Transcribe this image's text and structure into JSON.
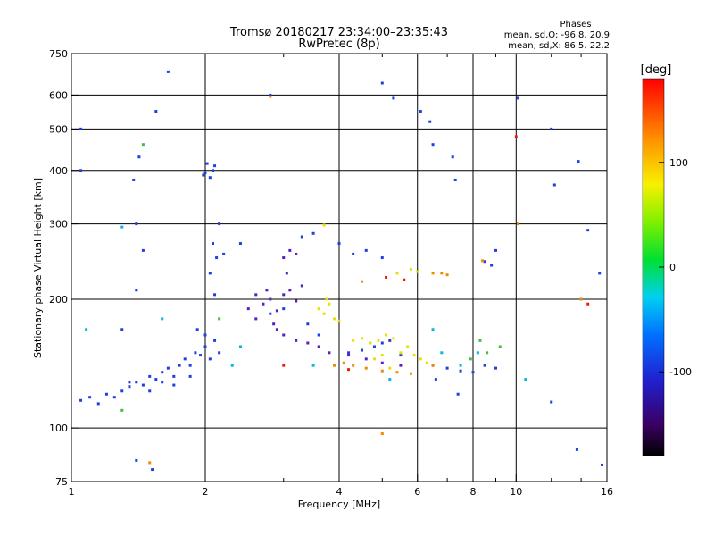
{
  "chart_data": {
    "type": "scatter",
    "title": "Tromsø 20180217 23:34:00–23:35:43",
    "subtitle": "RwPretec (8p)",
    "xlabel": "Frequency [MHz]",
    "ylabel": "Stationary phase Virtual Height [km]",
    "x_scale": "log",
    "y_scale": "log",
    "xlim": [
      1,
      16
    ],
    "ylim": [
      75,
      750
    ],
    "x_ticks": [
      1,
      2,
      4,
      6,
      8,
      10,
      16
    ],
    "y_ticks": [
      75,
      100,
      200,
      300,
      400,
      500,
      600,
      750
    ],
    "grid": true,
    "stats": {
      "heading": "Phases",
      "line_o": "mean, sd,O: -96.8, 20.9",
      "line_x": "mean, sd,X:  86.5, 22.2"
    },
    "colorbar": {
      "label": "[deg]",
      "ticks": [
        100,
        0,
        -100
      ],
      "range": [
        -180,
        180
      ],
      "colormap": "rainbow"
    },
    "colors": {
      "blue": "#1f3fe0",
      "violet": "#5a1fc0",
      "cyan": "#00b8e0",
      "yellow": "#e8e000",
      "orange": "#f08a00",
      "red": "#e82000",
      "green": "#40c040"
    },
    "series": [
      {
        "label_color": "blue",
        "points": [
          [
            1.05,
            116
          ],
          [
            1.1,
            118
          ],
          [
            1.15,
            114
          ],
          [
            1.2,
            120
          ],
          [
            1.25,
            118
          ],
          [
            1.3,
            122
          ],
          [
            1.35,
            125
          ],
          [
            1.4,
            128
          ],
          [
            1.45,
            126
          ],
          [
            1.5,
            132
          ],
          [
            1.55,
            130
          ],
          [
            1.6,
            135
          ],
          [
            1.65,
            138
          ],
          [
            1.7,
            132
          ],
          [
            1.75,
            140
          ],
          [
            1.8,
            145
          ],
          [
            1.85,
            140
          ],
          [
            1.9,
            150
          ],
          [
            1.95,
            148
          ],
          [
            2.0,
            155
          ],
          [
            2.05,
            145
          ],
          [
            2.1,
            160
          ],
          [
            2.15,
            150
          ],
          [
            1.92,
            170
          ],
          [
            2.0,
            165
          ],
          [
            1.35,
            128
          ],
          [
            1.5,
            122
          ],
          [
            1.6,
            128
          ],
          [
            1.7,
            126
          ],
          [
            1.85,
            132
          ],
          [
            2.05,
            385
          ],
          [
            2.08,
            400
          ],
          [
            2.1,
            410
          ],
          [
            2.0,
            395
          ],
          [
            1.98,
            390
          ],
          [
            2.02,
            415
          ],
          [
            2.1,
            205
          ],
          [
            2.05,
            230
          ],
          [
            2.12,
            250
          ],
          [
            2.08,
            270
          ],
          [
            2.15,
            300
          ],
          [
            4.2,
            150
          ],
          [
            4.5,
            152
          ],
          [
            4.8,
            155
          ],
          [
            5.0,
            158
          ],
          [
            5.2,
            160
          ],
          [
            5.5,
            148
          ],
          [
            6.5,
            140
          ],
          [
            7.0,
            138
          ],
          [
            7.5,
            136
          ],
          [
            8.0,
            135
          ],
          [
            8.5,
            140
          ],
          [
            9.0,
            138
          ],
          [
            8.8,
            240
          ],
          [
            9.0,
            260
          ],
          [
            8.5,
            245
          ],
          [
            4.0,
            270
          ],
          [
            4.3,
            255
          ],
          [
            4.6,
            260
          ],
          [
            5.0,
            250
          ],
          [
            2.8,
            185
          ],
          [
            3.0,
            190
          ],
          [
            3.4,
            175
          ],
          [
            3.6,
            165
          ]
        ]
      },
      {
        "label_color": "violet",
        "points": [
          [
            2.5,
            190
          ],
          [
            2.6,
            180
          ],
          [
            2.7,
            195
          ],
          [
            2.8,
            200
          ],
          [
            2.9,
            188
          ],
          [
            3.0,
            205
          ],
          [
            3.1,
            210
          ],
          [
            3.2,
            198
          ],
          [
            3.3,
            215
          ],
          [
            3.0,
            250
          ],
          [
            3.1,
            260
          ],
          [
            3.2,
            255
          ],
          [
            2.9,
            170
          ],
          [
            3.0,
            165
          ],
          [
            3.2,
            160
          ],
          [
            3.4,
            158
          ],
          [
            3.6,
            155
          ],
          [
            3.8,
            150
          ],
          [
            4.2,
            148
          ],
          [
            4.6,
            145
          ],
          [
            5.0,
            142
          ],
          [
            5.5,
            140
          ],
          [
            2.6,
            205
          ],
          [
            2.75,
            210
          ],
          [
            3.05,
            230
          ],
          [
            2.85,
            175
          ]
        ]
      },
      {
        "label_color": "cyan",
        "points": [
          [
            1.3,
            295
          ],
          [
            1.6,
            180
          ],
          [
            2.3,
            140
          ],
          [
            2.4,
            155
          ],
          [
            3.5,
            140
          ],
          [
            5.2,
            130
          ],
          [
            6.5,
            170
          ],
          [
            6.8,
            150
          ],
          [
            7.5,
            140
          ],
          [
            8.2,
            150
          ],
          [
            10.5,
            130
          ],
          [
            1.08,
            170
          ]
        ]
      },
      {
        "label_color": "yellow",
        "points": [
          [
            3.6,
            190
          ],
          [
            3.7,
            185
          ],
          [
            3.8,
            195
          ],
          [
            3.9,
            180
          ],
          [
            4.0,
            178
          ],
          [
            3.75,
            200
          ],
          [
            4.3,
            160
          ],
          [
            4.5,
            162
          ],
          [
            4.7,
            158
          ],
          [
            4.9,
            160
          ],
          [
            5.1,
            165
          ],
          [
            5.3,
            162
          ],
          [
            5.5,
            150
          ],
          [
            5.7,
            155
          ],
          [
            5.9,
            148
          ],
          [
            6.1,
            145
          ],
          [
            6.3,
            142
          ],
          [
            4.8,
            145
          ],
          [
            5.0,
            148
          ],
          [
            5.2,
            138
          ],
          [
            3.7,
            298
          ],
          [
            5.4,
            230
          ],
          [
            5.8,
            235
          ],
          [
            6.0,
            232
          ]
        ]
      },
      {
        "label_color": "orange",
        "points": [
          [
            3.9,
            140
          ],
          [
            4.1,
            142
          ],
          [
            4.3,
            140
          ],
          [
            4.6,
            138
          ],
          [
            5.0,
            136
          ],
          [
            5.4,
            135
          ],
          [
            5.8,
            134
          ],
          [
            6.5,
            140
          ],
          [
            6.8,
            230
          ],
          [
            7.0,
            228
          ],
          [
            6.5,
            230
          ],
          [
            4.5,
            220
          ],
          [
            1.5,
            83
          ],
          [
            5.0,
            97
          ],
          [
            8.4,
            246
          ],
          [
            2.8,
            595
          ],
          [
            10.1,
            300
          ],
          [
            14,
            200
          ]
        ]
      },
      {
        "label_color": "red",
        "points": [
          [
            4.2,
            137
          ],
          [
            5.1,
            225
          ],
          [
            5.6,
            222
          ],
          [
            10.0,
            480
          ],
          [
            14.5,
            195
          ],
          [
            3.0,
            140
          ]
        ]
      },
      {
        "label_color": "green",
        "points": [
          [
            8.3,
            160
          ],
          [
            8.6,
            150
          ],
          [
            9.2,
            155
          ],
          [
            7.9,
            145
          ],
          [
            1.45,
            460
          ],
          [
            2.15,
            180
          ],
          [
            1.3,
            110
          ]
        ]
      },
      {
        "label_color": "blue",
        "points": [
          [
            1.3,
            170
          ],
          [
            1.4,
            210
          ],
          [
            1.45,
            260
          ],
          [
            1.4,
            300
          ],
          [
            1.38,
            380
          ],
          [
            1.42,
            430
          ],
          [
            1.55,
            550
          ],
          [
            1.65,
            680
          ],
          [
            2.8,
            600
          ],
          [
            5.0,
            640
          ],
          [
            5.3,
            590
          ],
          [
            6.1,
            550
          ],
          [
            6.4,
            520
          ],
          [
            6.5,
            460
          ],
          [
            7.2,
            430
          ],
          [
            7.3,
            380
          ],
          [
            10.1,
            590
          ],
          [
            12.0,
            500
          ],
          [
            12.2,
            370
          ],
          [
            13.8,
            420
          ],
          [
            14.5,
            290
          ],
          [
            15.4,
            230
          ],
          [
            1.05,
            500
          ],
          [
            1.05,
            400
          ],
          [
            1.4,
            84
          ],
          [
            1.52,
            80
          ],
          [
            6.6,
            130
          ],
          [
            7.4,
            120
          ],
          [
            12.0,
            115
          ],
          [
            13.7,
            89
          ],
          [
            15.6,
            82
          ],
          [
            2.4,
            270
          ],
          [
            2.2,
            255
          ],
          [
            3.3,
            280
          ],
          [
            3.5,
            285
          ]
        ]
      }
    ]
  }
}
